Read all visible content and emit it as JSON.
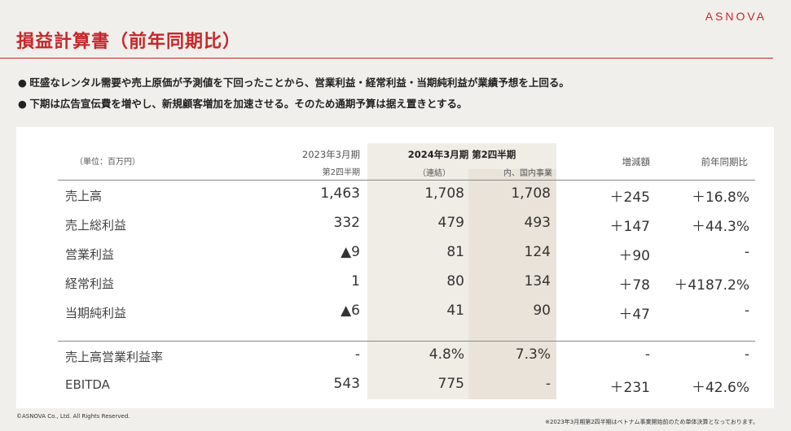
{
  "header": {
    "title": "損益計算書（前年同期比）",
    "brand": "ASNOVA"
  },
  "bullets": [
    "旺盛なレンタル需要や売上原価が予測値を下回ったことから、営業利益・経常利益・当期純利益が業績予想を上回る。",
    "下期は広告宣伝費を増やし、新規顧客増加を加速させる。そのため通期予算は据え置きとする。"
  ],
  "bullet_marker": "●",
  "table": {
    "unit": "（単位：百万円）",
    "col_prev_line1": "2023年3月期",
    "col_prev_line2": "第2四半期",
    "col_cur_line1": "2024年3月期 第2四半期",
    "col_cur_sub1": "（連結）",
    "col_cur_sub2": "内、国内事業",
    "col_diff": "増減額",
    "col_yoy": "前年同期比",
    "rows": [
      {
        "label": "売上高",
        "prev": "1,463",
        "cons": "1,708",
        "dom": "1,708",
        "diff": "＋245",
        "yoy": "＋16.8%"
      },
      {
        "label": "売上総利益",
        "prev": "332",
        "cons": "479",
        "dom": "493",
        "diff": "＋147",
        "yoy": "＋44.3%"
      },
      {
        "label": "営業利益",
        "prev": "▲9",
        "cons": "81",
        "dom": "124",
        "diff": "＋90",
        "yoy": "-"
      },
      {
        "label": "経常利益",
        "prev": "1",
        "cons": "80",
        "dom": "134",
        "diff": "＋78",
        "yoy": "＋4187.2%"
      },
      {
        "label": "当期純利益",
        "prev": "▲6",
        "cons": "41",
        "dom": "90",
        "diff": "＋47",
        "yoy": "-"
      },
      {
        "label": "売上高営業利益率",
        "prev": "-",
        "cons": "4.8%",
        "dom": "7.3%",
        "diff": "-",
        "yoy": "-"
      },
      {
        "label": "EBITDA",
        "prev": "543",
        "cons": "775",
        "dom": "-",
        "diff": "＋231",
        "yoy": "＋42.6%"
      }
    ]
  },
  "footer": {
    "copyright": "©ASNOVA Co., Ltd. All Rights Reserved.",
    "note": "※2023年3月期第2四半期はベトナム事業開始前のため単体決算となっております。"
  }
}
